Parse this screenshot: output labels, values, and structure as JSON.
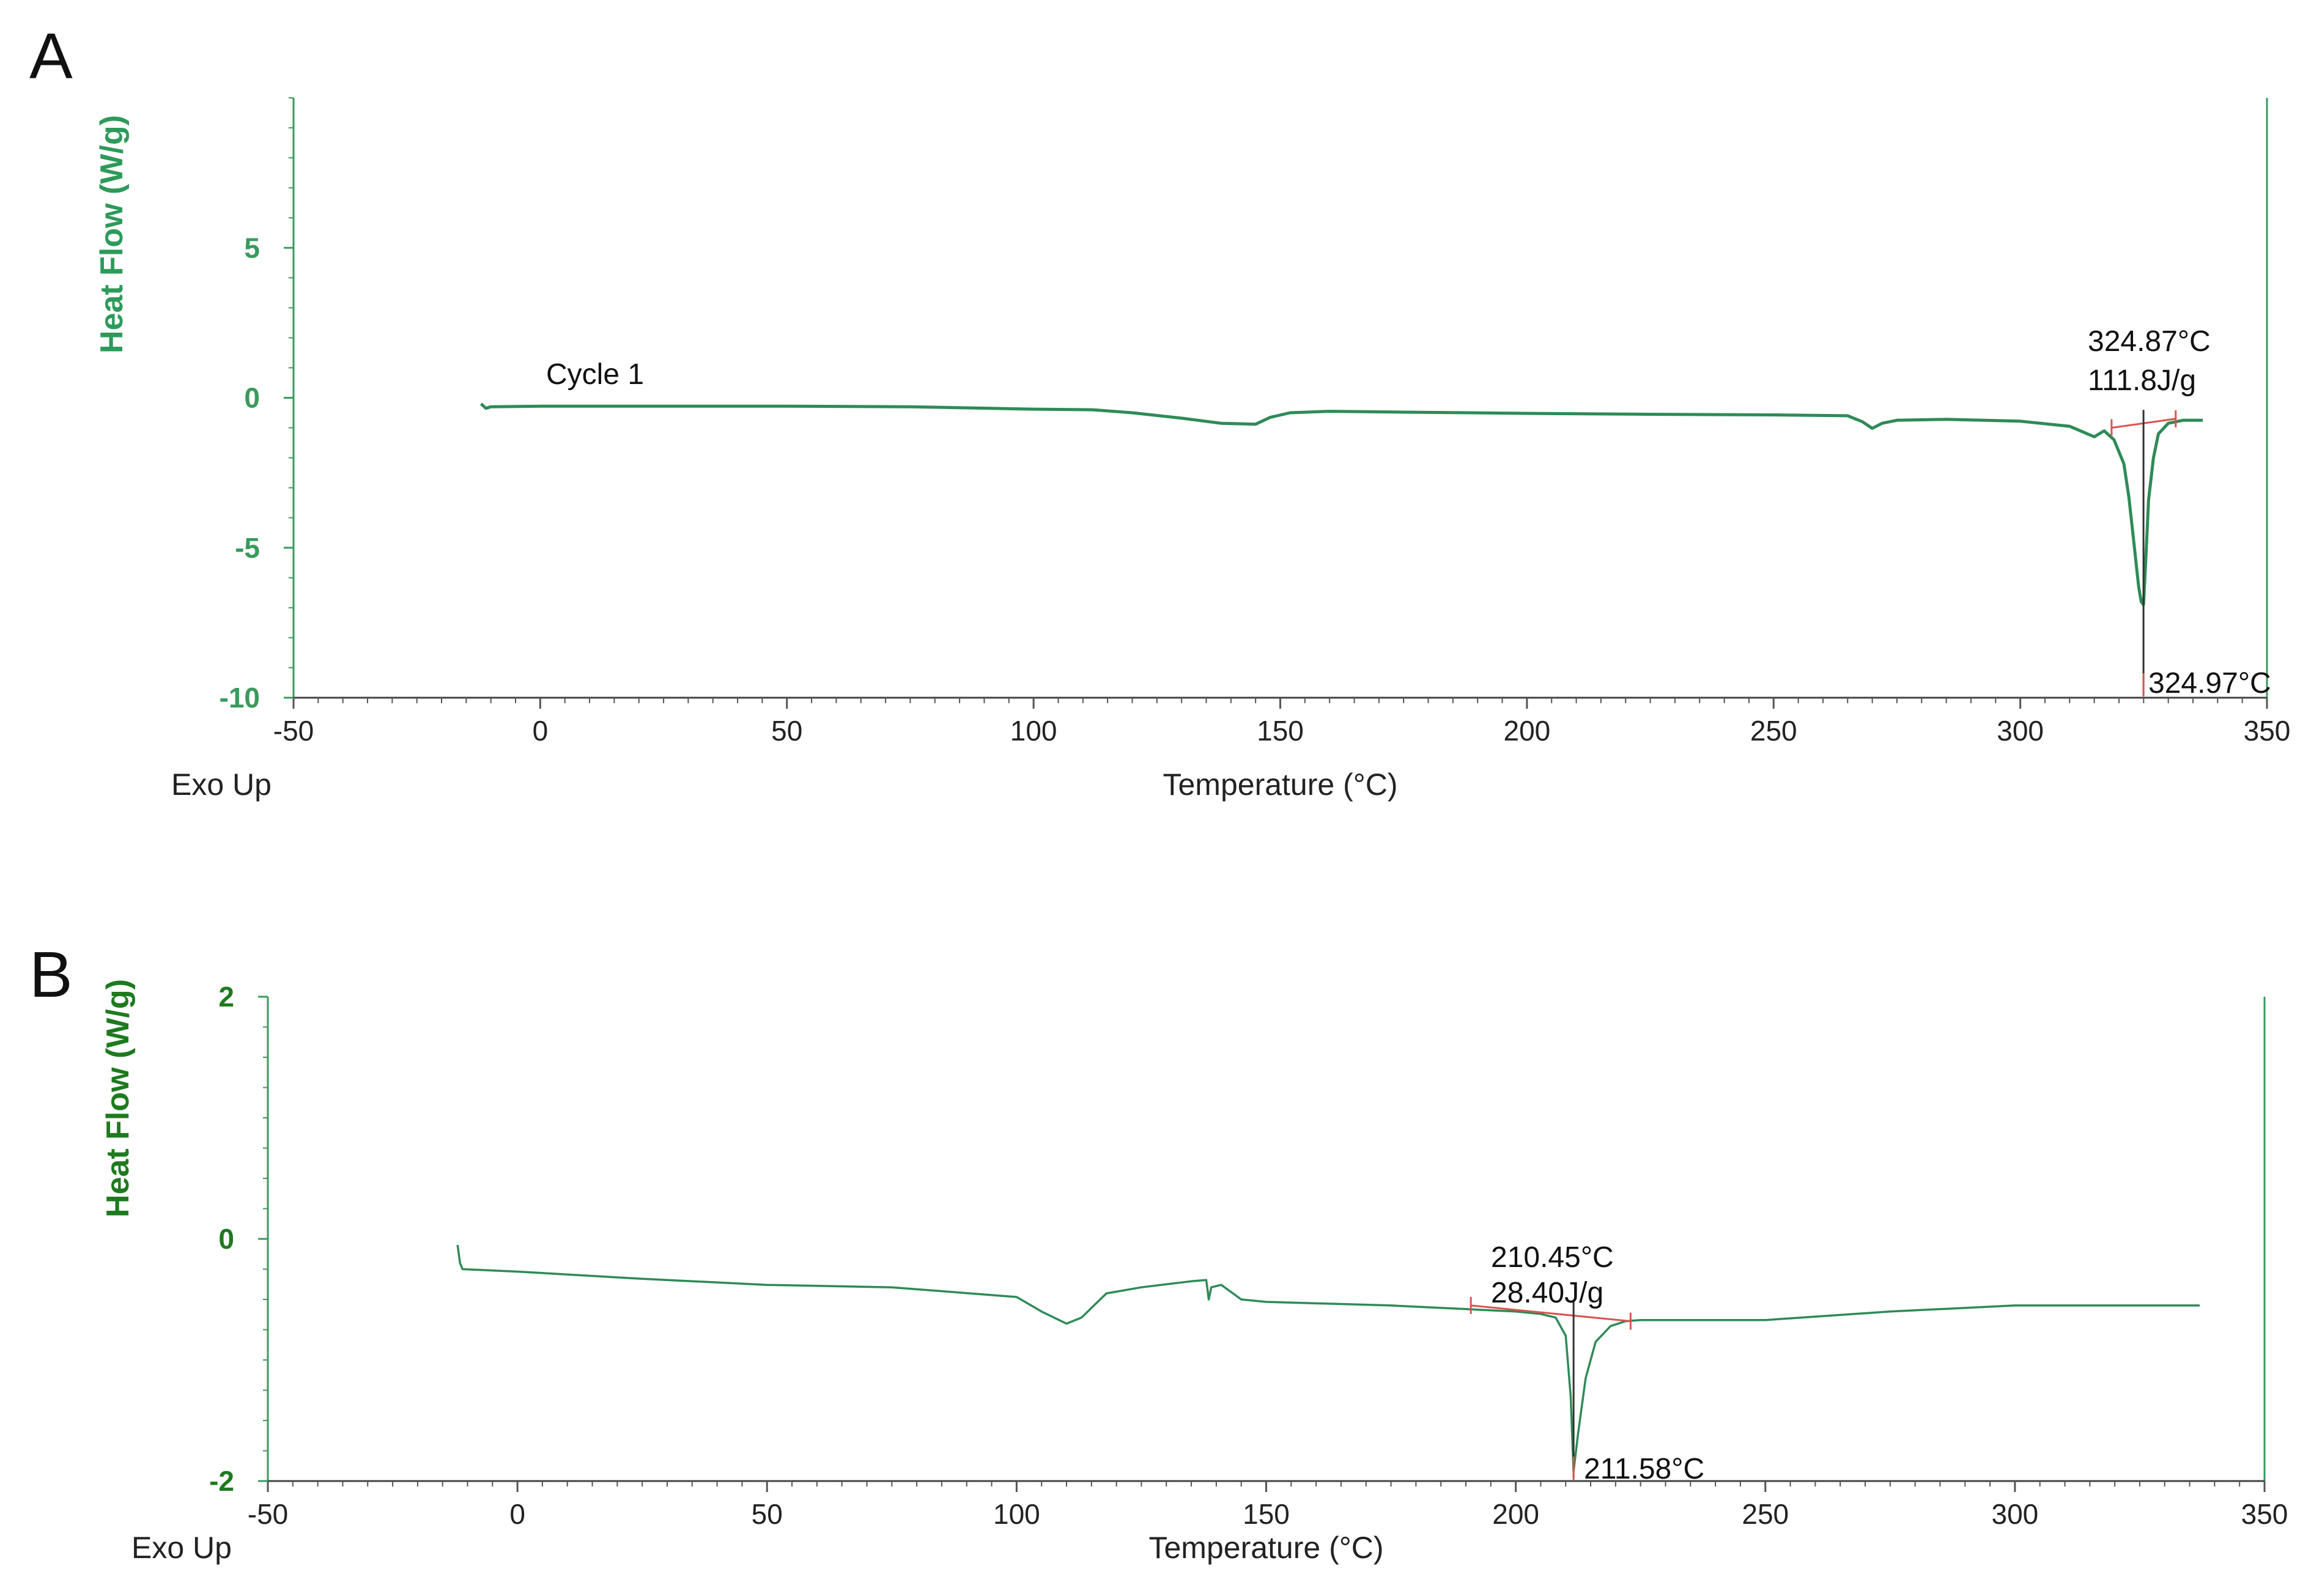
{
  "colors": {
    "curve": "#2e8b57",
    "axis_green": "#3a9a5c",
    "ylabel_a": "#2e9a5a",
    "ylabel_b": "#1e7a1e",
    "baseline": "#d9534f",
    "peak_marker": "#333333",
    "text": "#222222"
  },
  "chart_data": [
    {
      "panel": "A",
      "type": "line",
      "xlabel": "Temperature (°C)",
      "ylabel": "Heat Flow (W/g)",
      "corner_label": "Exo Up",
      "xlim": [
        -50,
        350
      ],
      "ylim": [
        -10,
        10
      ],
      "xticks": [
        -50,
        0,
        50,
        100,
        150,
        200,
        250,
        300,
        350
      ],
      "yticks": [
        -10,
        -5,
        0,
        5
      ],
      "grid": false,
      "series": [
        {
          "name": "Cycle 1",
          "x": [
            -12,
            -11,
            -10,
            0,
            25,
            50,
            75,
            100,
            112,
            120,
            130,
            138,
            145,
            148,
            152,
            160,
            175,
            200,
            225,
            250,
            265,
            268,
            270,
            272,
            275,
            285,
            300,
            310,
            315,
            317,
            319,
            321,
            322,
            323,
            324,
            324.5,
            324.97,
            325.5,
            326,
            327,
            328,
            330,
            333,
            337
          ],
          "y": [
            -0.2,
            -0.35,
            -0.3,
            -0.28,
            -0.28,
            -0.28,
            -0.3,
            -0.38,
            -0.4,
            -0.5,
            -0.68,
            -0.85,
            -0.88,
            -0.65,
            -0.5,
            -0.45,
            -0.48,
            -0.52,
            -0.55,
            -0.57,
            -0.6,
            -0.8,
            -1.02,
            -0.85,
            -0.75,
            -0.72,
            -0.78,
            -0.95,
            -1.3,
            -1.1,
            -1.4,
            -2.2,
            -3.3,
            -4.8,
            -6.3,
            -6.8,
            -6.9,
            -5.2,
            -3.4,
            -2.0,
            -1.2,
            -0.85,
            -0.75,
            -0.75
          ]
        }
      ],
      "integration": {
        "baseline_x": [
          318.5,
          331.5
        ],
        "baseline_y": [
          -1.0,
          -0.7
        ],
        "peak_x": 324.97,
        "onset_label": "324.87°C",
        "enthalpy_label": "111.8J/g",
        "peak_label": "324.97°C"
      }
    },
    {
      "panel": "B",
      "type": "line",
      "xlabel": "Temperature (°C)",
      "ylabel": "Heat Flow (W/g)",
      "corner_label": "Exo Up",
      "xlim": [
        -50,
        350
      ],
      "ylim": [
        -2,
        2
      ],
      "xticks": [
        -50,
        0,
        50,
        100,
        150,
        200,
        250,
        300,
        350
      ],
      "yticks": [
        -2,
        0,
        2
      ],
      "grid": false,
      "series": [
        {
          "x": [
            -12,
            -11.5,
            -11,
            0,
            25,
            50,
            75,
            100,
            105,
            110,
            113,
            118,
            125,
            135,
            138,
            138.5,
            139,
            141,
            145,
            150,
            175,
            190,
            200,
            205,
            208,
            210,
            211,
            211.58,
            212.5,
            214,
            216,
            219,
            222,
            225,
            250,
            275,
            300,
            320,
            337
          ],
          "y": [
            -0.05,
            -0.2,
            -0.25,
            -0.27,
            -0.33,
            -0.38,
            -0.4,
            -0.48,
            -0.6,
            -0.7,
            -0.65,
            -0.45,
            -0.4,
            -0.35,
            -0.34,
            -0.5,
            -0.4,
            -0.38,
            -0.5,
            -0.52,
            -0.55,
            -0.58,
            -0.6,
            -0.62,
            -0.65,
            -0.8,
            -1.3,
            -1.92,
            -1.6,
            -1.15,
            -0.85,
            -0.72,
            -0.68,
            -0.67,
            -0.67,
            -0.6,
            -0.55,
            -0.55,
            -0.55
          ]
        }
      ],
      "integration": {
        "baseline_x": [
          191,
          223
        ],
        "baseline_y": [
          -0.55,
          -0.68
        ],
        "peak_x": 211.58,
        "onset_label": "210.45°C",
        "enthalpy_label": "28.40J/g",
        "peak_label": "211.58°C"
      }
    }
  ]
}
